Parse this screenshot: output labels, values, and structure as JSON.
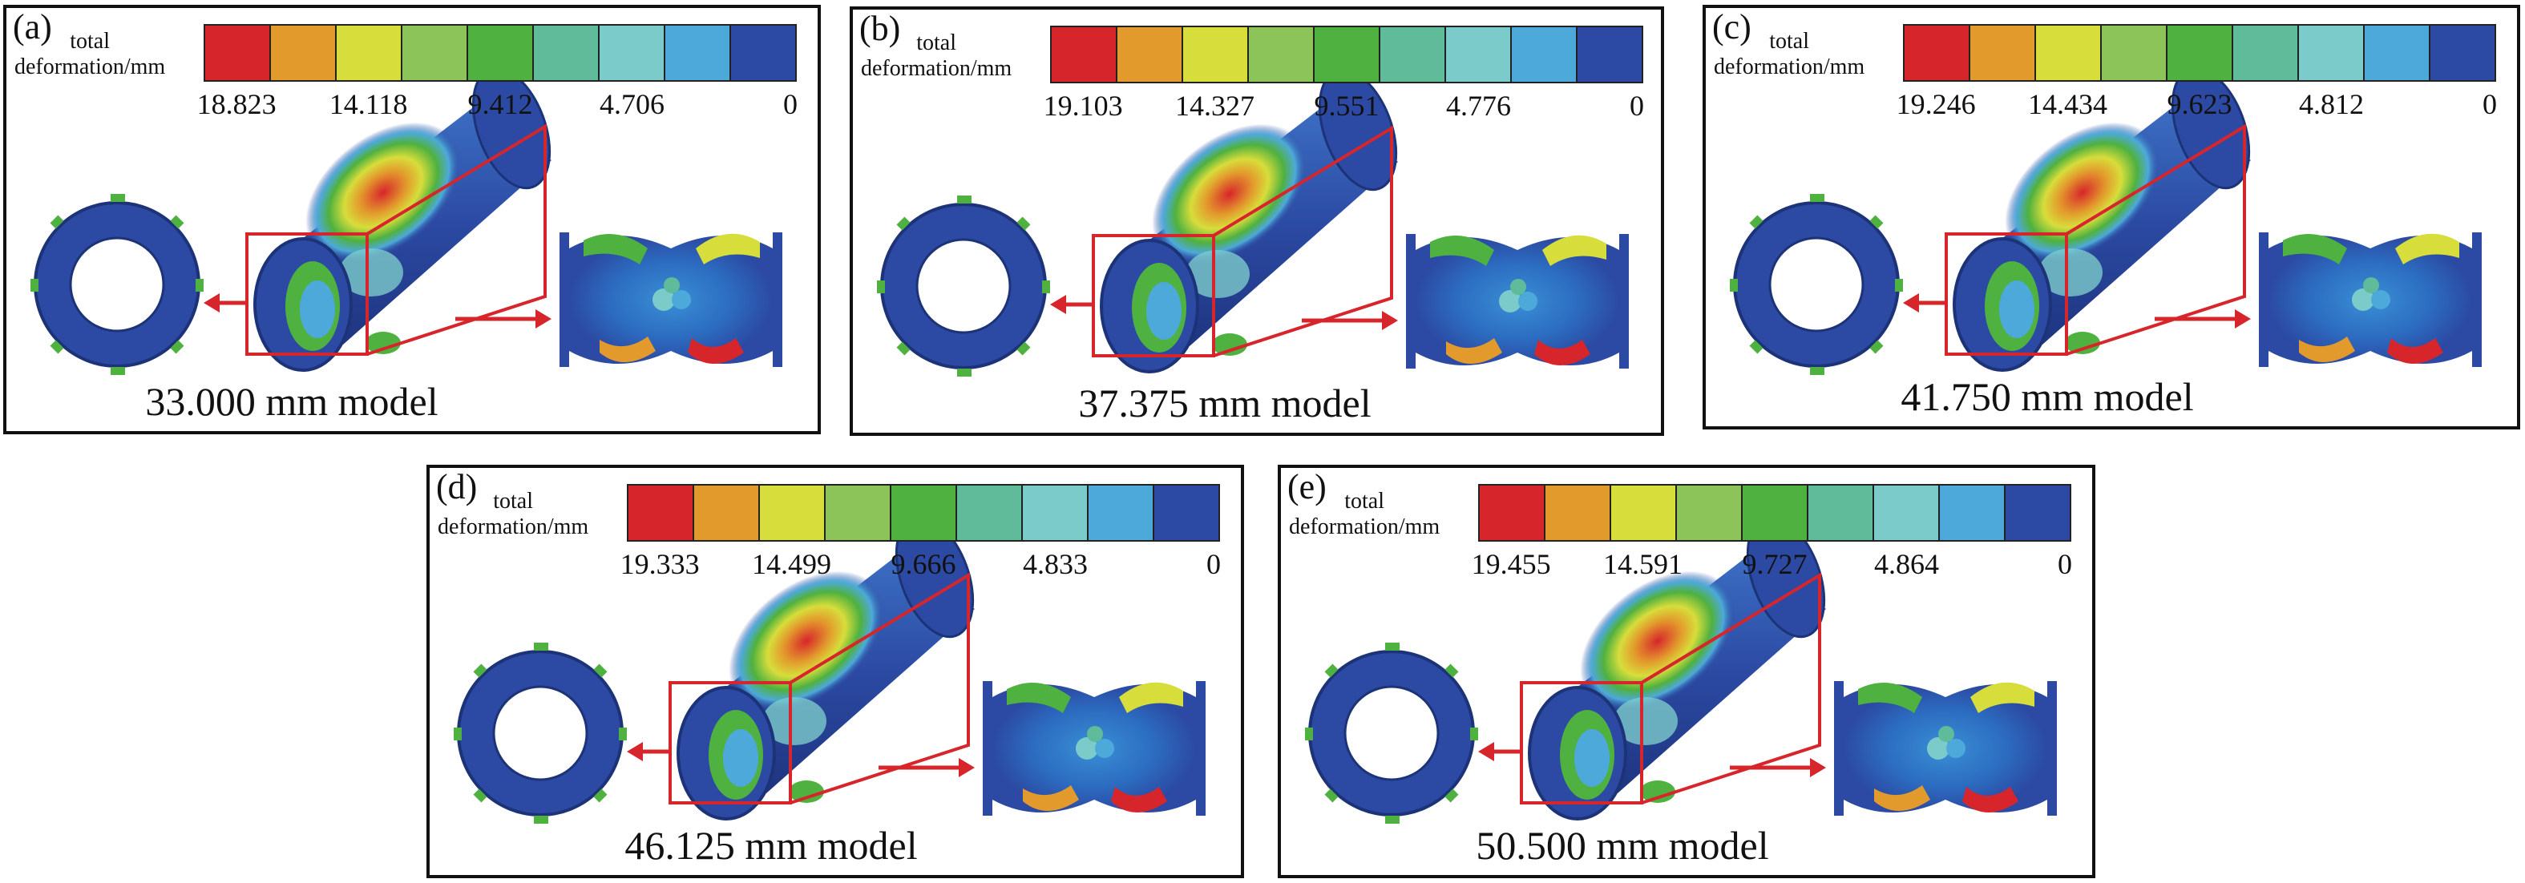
{
  "legend_title": [
    "total",
    "deformation/mm"
  ],
  "palette": [
    "#d7262b",
    "#e39a2c",
    "#d7dd3b",
    "#8cc45a",
    "#4fb13f",
    "#5fbb9a",
    "#7ccbcb",
    "#4da9d9",
    "#2c4aa3"
  ],
  "panels": [
    {
      "label": "(a)",
      "ticks": [
        "18.823",
        "14.118",
        "9.412",
        "4.706",
        "0"
      ],
      "caption": "33.000 mm model"
    },
    {
      "label": "(b)",
      "ticks": [
        "19.103",
        "14.327",
        "9.551",
        "4.776",
        "0"
      ],
      "caption": "37.375 mm model"
    },
    {
      "label": "(c)",
      "ticks": [
        "19.246",
        "14.434",
        "9.623",
        "4.812",
        "0"
      ],
      "caption": "41.750 mm model"
    },
    {
      "label": "(d)",
      "ticks": [
        "19.333",
        "14.499",
        "9.666",
        "4.833",
        "0"
      ],
      "caption": "46.125 mm model"
    },
    {
      "label": "(e)",
      "ticks": [
        "19.455",
        "14.591",
        "9.727",
        "4.864",
        "0"
      ],
      "caption": "50.500 mm model"
    }
  ]
}
